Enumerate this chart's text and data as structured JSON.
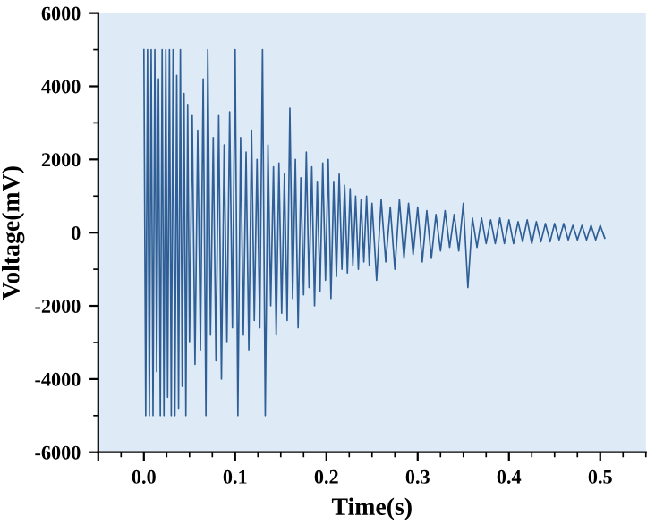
{
  "chart_data": {
    "type": "line",
    "xlabel": "Time(s)",
    "ylabel": "Voltage(mV)",
    "xlim": [
      -0.05,
      0.55
    ],
    "xticks": [
      {
        "value": -0.05,
        "label": null
      },
      {
        "value": 0.0,
        "label": "0.0"
      },
      {
        "value": 0.1,
        "label": "0.1"
      },
      {
        "value": 0.2,
        "label": "0.2"
      },
      {
        "value": 0.3,
        "label": "0.3"
      },
      {
        "value": 0.4,
        "label": "0.4"
      },
      {
        "value": 0.5,
        "label": "0.5"
      }
    ],
    "ylim": [
      -6000,
      6000
    ],
    "yticks": [
      -6000,
      -4000,
      -2000,
      0,
      2000,
      4000,
      6000
    ],
    "grid": false,
    "legend": false,
    "series": [
      {
        "color": "#2f5f96",
        "x": [
          0.0,
          0.002,
          0.004,
          0.006,
          0.008,
          0.01,
          0.012,
          0.014,
          0.016,
          0.018,
          0.02,
          0.022,
          0.024,
          0.026,
          0.028,
          0.03,
          0.032,
          0.034,
          0.036,
          0.038,
          0.04,
          0.042,
          0.044,
          0.046,
          0.048,
          0.05,
          0.053,
          0.056,
          0.059,
          0.062,
          0.065,
          0.068,
          0.07,
          0.073,
          0.076,
          0.079,
          0.082,
          0.085,
          0.088,
          0.091,
          0.094,
          0.097,
          0.1,
          0.103,
          0.106,
          0.109,
          0.112,
          0.115,
          0.118,
          0.121,
          0.124,
          0.127,
          0.13,
          0.133,
          0.136,
          0.139,
          0.142,
          0.145,
          0.148,
          0.151,
          0.154,
          0.157,
          0.16,
          0.163,
          0.166,
          0.169,
          0.172,
          0.175,
          0.178,
          0.181,
          0.184,
          0.187,
          0.19,
          0.193,
          0.196,
          0.199,
          0.202,
          0.205,
          0.208,
          0.211,
          0.214,
          0.217,
          0.22,
          0.223,
          0.226,
          0.229,
          0.232,
          0.235,
          0.238,
          0.241,
          0.244,
          0.247,
          0.25,
          0.255,
          0.26,
          0.265,
          0.27,
          0.275,
          0.28,
          0.285,
          0.29,
          0.295,
          0.3,
          0.305,
          0.31,
          0.315,
          0.32,
          0.325,
          0.33,
          0.335,
          0.34,
          0.345,
          0.35,
          0.355,
          0.36,
          0.365,
          0.37,
          0.375,
          0.38,
          0.385,
          0.39,
          0.395,
          0.4,
          0.405,
          0.41,
          0.415,
          0.42,
          0.425,
          0.43,
          0.435,
          0.44,
          0.445,
          0.45,
          0.455,
          0.46,
          0.465,
          0.47,
          0.475,
          0.48,
          0.485,
          0.49,
          0.495,
          0.5,
          0.505
        ],
        "values": [
          5000,
          -5000,
          5000,
          -5000,
          5000,
          -5000,
          5000,
          -3800,
          4200,
          -5000,
          5000,
          -5000,
          5000,
          -4500,
          5000,
          -5000,
          5000,
          -5000,
          4300,
          -4800,
          5000,
          -4200,
          3800,
          -5000,
          3500,
          -3000,
          3200,
          -3600,
          2800,
          -3200,
          4200,
          -5000,
          5000,
          -2800,
          2600,
          -3500,
          3200,
          -4000,
          2400,
          -3000,
          3300,
          -2600,
          5000,
          -5000,
          2600,
          -2800,
          2200,
          -3200,
          2800,
          -2400,
          2000,
          -2600,
          5000,
          -5000,
          2400,
          -2000,
          1800,
          -2800,
          1900,
          -2200,
          1600,
          -2400,
          3400,
          -1800,
          2000,
          -2600,
          1500,
          -1700,
          2200,
          -1500,
          1800,
          -2000,
          1400,
          -1600,
          1900,
          -1300,
          2000,
          -1800,
          1400,
          -1200,
          1600,
          -1000,
          1300,
          -1100,
          1200,
          -900,
          1000,
          -1000,
          900,
          -800,
          1000,
          -900,
          800,
          -1300,
          900,
          -800,
          700,
          -1000,
          900,
          -700,
          800,
          -600,
          700,
          -800,
          600,
          -700,
          500,
          -500,
          600,
          -400,
          500,
          -500,
          800,
          -1500,
          400,
          -400,
          400,
          -300,
          350,
          -300,
          400,
          -300,
          350,
          -300,
          300,
          -250,
          350,
          -300,
          300,
          -250,
          250,
          -250,
          250,
          -200,
          250,
          -200,
          200,
          -200,
          200,
          -200,
          200,
          -200,
          200,
          -150
        ]
      }
    ]
  }
}
